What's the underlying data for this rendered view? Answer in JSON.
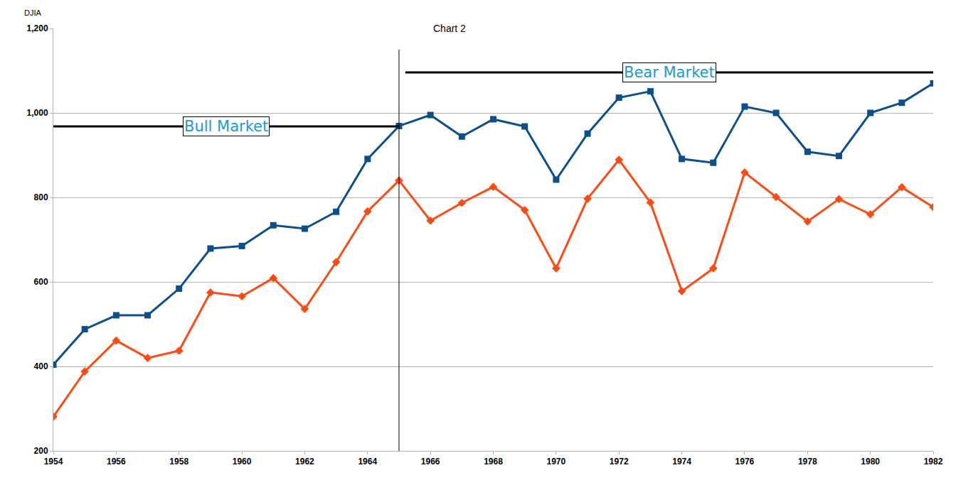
{
  "chart_data": {
    "type": "line",
    "title": "Chart 2",
    "y_label": "DJIA",
    "x": [
      1954,
      1955,
      1956,
      1957,
      1958,
      1959,
      1960,
      1961,
      1962,
      1963,
      1964,
      1965,
      1966,
      1967,
      1968,
      1969,
      1970,
      1971,
      1972,
      1973,
      1974,
      1975,
      1976,
      1977,
      1978,
      1979,
      1980,
      1981,
      1982
    ],
    "series": [
      {
        "color": "#0b4f8f",
        "marker": "square",
        "line_style": "solid",
        "values": [
          404,
          488,
          521,
          521,
          584,
          679,
          685,
          734,
          726,
          766,
          891,
          969,
          995,
          944,
          985,
          968,
          842,
          951,
          1036,
          1051,
          891,
          882,
          1015,
          1000,
          908,
          898,
          1000,
          1024,
          1070
        ]
      },
      {
        "color": "#ff4a12",
        "marker": "diamond",
        "line_style": "solid",
        "values": [
          281,
          388,
          461,
          420,
          437,
          575,
          566,
          609,
          536,
          647,
          767,
          840,
          745,
          787,
          825,
          770,
          632,
          797,
          889,
          788,
          578,
          632,
          859,
          801,
          743,
          796,
          760,
          824,
          777
        ]
      }
    ],
    "xlim": [
      1954,
      1982
    ],
    "xticks": [
      1954,
      1956,
      1958,
      1960,
      1962,
      1964,
      1966,
      1968,
      1970,
      1972,
      1974,
      1976,
      1978,
      1980,
      1982
    ],
    "ylim": [
      200,
      1200
    ],
    "yticks": [
      200,
      400,
      600,
      800,
      {
        "value": 1000,
        "label": "1,000"
      },
      {
        "value": 1200,
        "label": "1,200"
      }
    ],
    "grid": true,
    "annotations": [
      {
        "text": "Bull Market",
        "x_start": 1954,
        "x_end": 1965,
        "y": 968
      },
      {
        "text": "Bear Market",
        "x_start": 1965.2,
        "x_end": 1982,
        "y": 1096
      }
    ],
    "divider_x": 1965
  }
}
